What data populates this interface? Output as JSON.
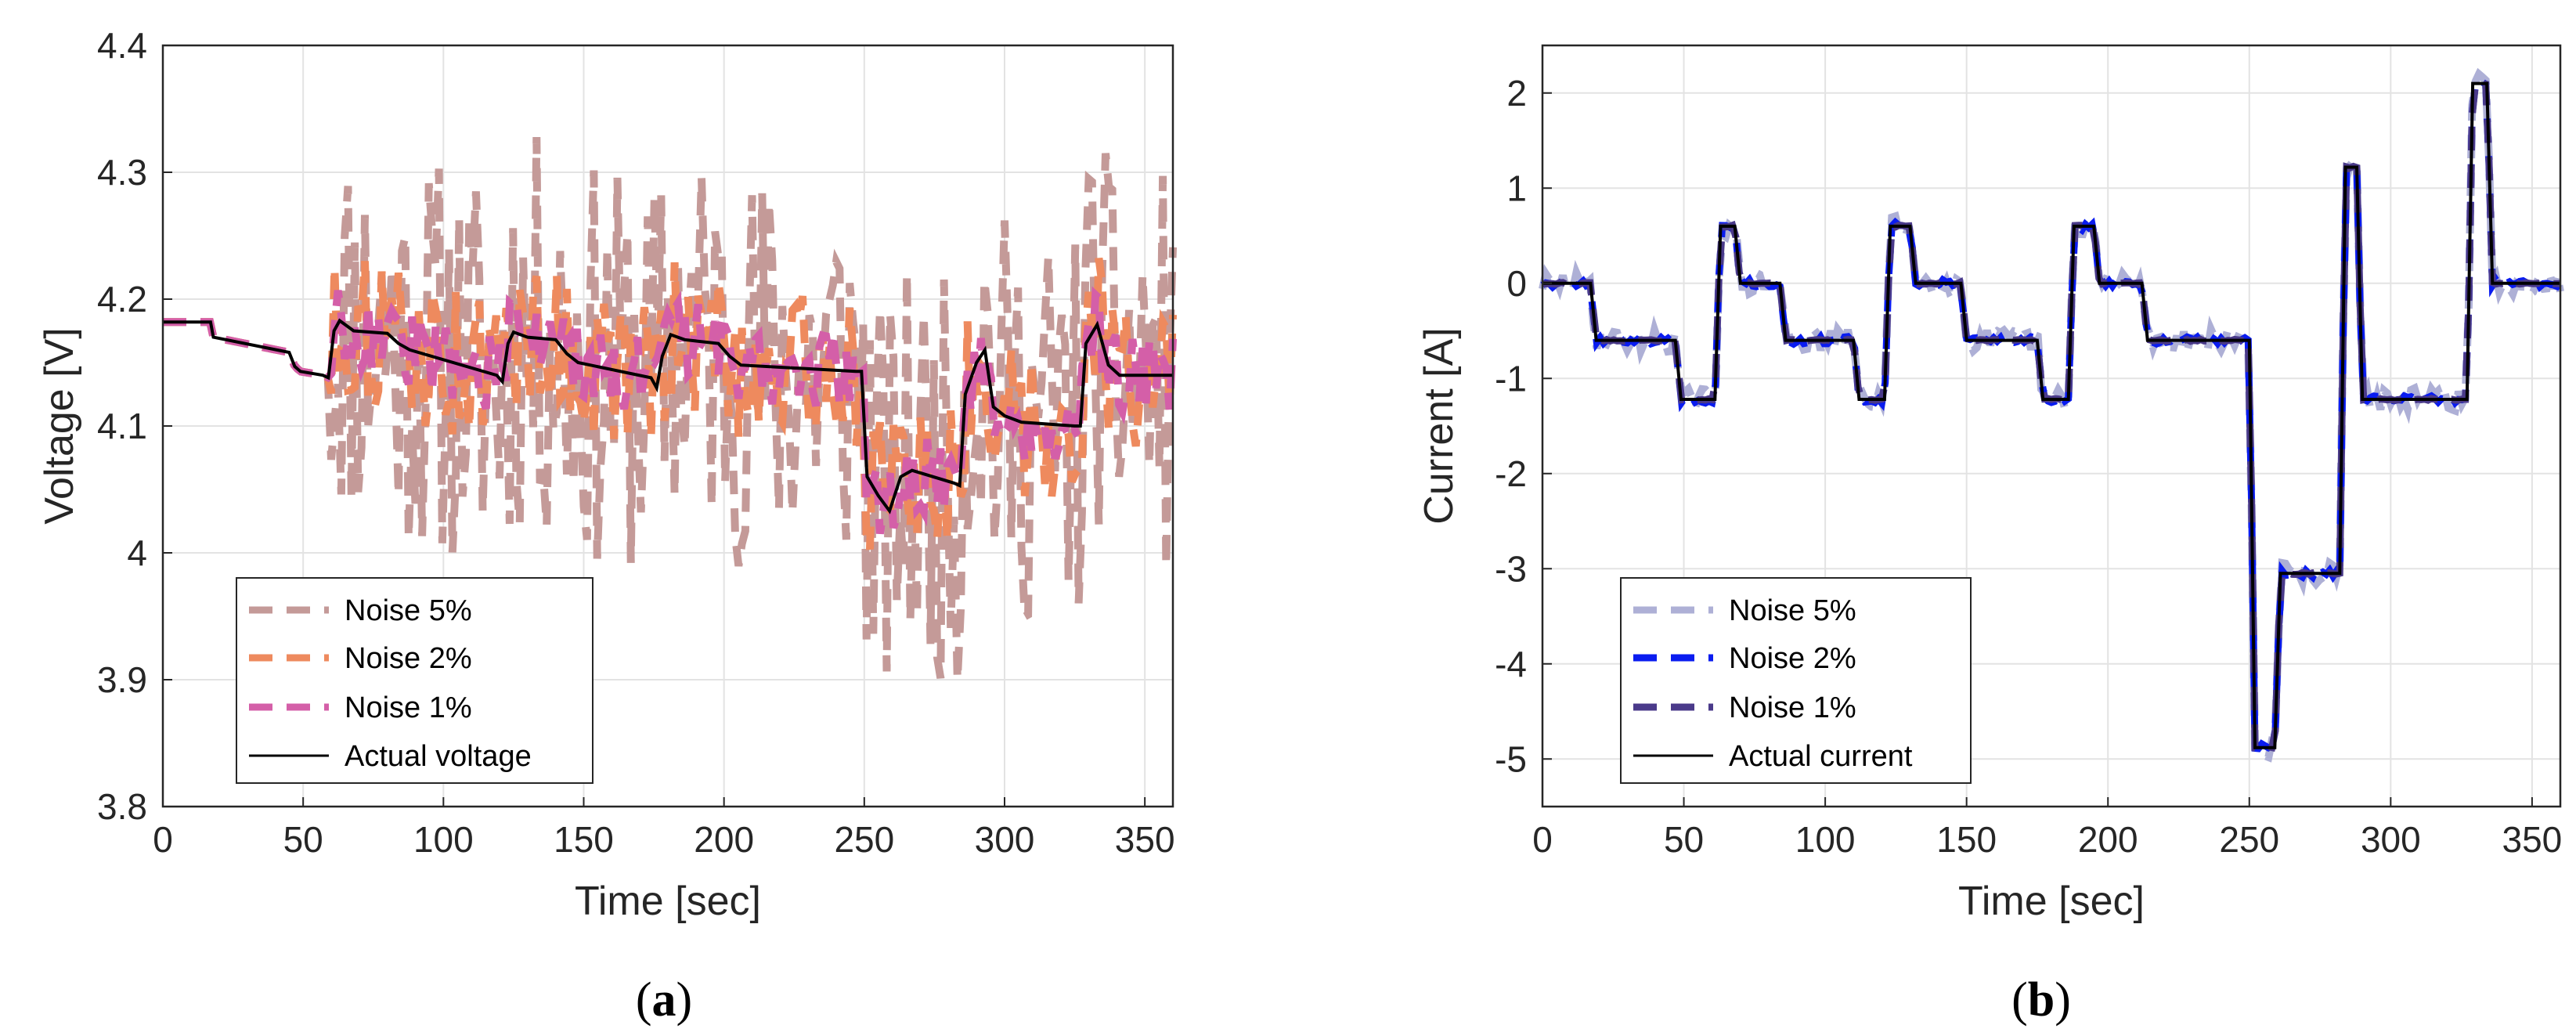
{
  "chart_data": [
    {
      "type": "line",
      "panel": "a",
      "caption_open": "(",
      "caption_letter": "a",
      "caption_close": ")",
      "xlabel": "Time [sec]",
      "ylabel": "Voltage [V]",
      "xlim": [
        0,
        360
      ],
      "ylim": [
        3.8,
        4.4
      ],
      "xticks": [
        0,
        50,
        100,
        150,
        200,
        250,
        300,
        350
      ],
      "yticks": [
        3.8,
        3.9,
        4.0,
        4.1,
        4.2,
        4.3,
        4.4
      ],
      "ytick_labels": [
        "3.8",
        "3.9",
        "4",
        "4.1",
        "4.2",
        "4.3",
        "4.4"
      ],
      "grid": true,
      "legend_position": "bottom-left",
      "series": [
        {
          "name": "Noise 5%",
          "color": "#c49a98",
          "style": "dashed",
          "noise_amplitude_V": 0.16
        },
        {
          "name": "Noise 2%",
          "color": "#ee8a5e",
          "style": "dashed",
          "noise_amplitude_V": 0.06
        },
        {
          "name": "Noise 1%",
          "color": "#d45fa8",
          "style": "dashed",
          "noise_amplitude_V": 0.03
        },
        {
          "name": "Actual voltage",
          "color": "#000000",
          "style": "solid",
          "x": [
            0,
            17,
            18,
            45,
            47,
            49,
            57,
            59,
            61,
            63,
            68,
            80,
            84,
            88,
            119,
            121,
            123,
            125,
            130,
            140,
            144,
            148,
            174,
            176,
            178,
            181,
            186,
            198,
            202,
            206,
            247,
            249,
            251,
            255,
            259,
            263,
            267,
            282,
            284,
            286,
            290,
            293,
            296,
            300,
            306,
            325,
            327,
            329,
            333,
            337,
            341,
            360
          ],
          "y": [
            4.182,
            4.182,
            4.17,
            4.158,
            4.147,
            4.143,
            4.14,
            4.138,
            4.175,
            4.183,
            4.175,
            4.173,
            4.165,
            4.16,
            4.14,
            4.135,
            4.165,
            4.174,
            4.17,
            4.168,
            4.157,
            4.15,
            4.138,
            4.13,
            4.155,
            4.172,
            4.168,
            4.165,
            4.155,
            4.148,
            4.143,
            4.143,
            4.06,
            4.045,
            4.033,
            4.06,
            4.065,
            4.055,
            4.053,
            4.125,
            4.15,
            4.16,
            4.115,
            4.108,
            4.103,
            4.1,
            4.1,
            4.165,
            4.18,
            4.148,
            4.14,
            4.14
          ]
        }
      ]
    },
    {
      "type": "line",
      "panel": "b",
      "caption_open": "(",
      "caption_letter": "b",
      "caption_close": ")",
      "xlabel": "Time [sec]",
      "ylabel": "Current [A]",
      "xlim": [
        0,
        360
      ],
      "ylim": [
        -5.5,
        2.5
      ],
      "xticks": [
        0,
        50,
        100,
        150,
        200,
        250,
        300,
        350
      ],
      "yticks": [
        -5,
        -4,
        -3,
        -2,
        -1,
        0,
        1,
        2
      ],
      "ytick_labels": [
        "-5",
        "-4",
        "-3",
        "-2",
        "-1",
        "0",
        "1",
        "2"
      ],
      "grid": true,
      "legend_position": "bottom-left",
      "series": [
        {
          "name": "Noise 5%",
          "color": "#aeb0d6",
          "style": "dashed",
          "noise_amplitude_A": 0.12
        },
        {
          "name": "Noise 2%",
          "color": "#0a1cf0",
          "style": "dashed",
          "noise_amplitude_A": 0.04
        },
        {
          "name": "Noise 1%",
          "color": "#4a3a8a",
          "style": "dashed",
          "noise_amplitude_A": 0.01
        },
        {
          "name": "Actual current",
          "color": "#000000",
          "style": "solid",
          "x": [
            0,
            17,
            19,
            47,
            49,
            61,
            63,
            68,
            70,
            84,
            86,
            110,
            112,
            121,
            123,
            130,
            132,
            148,
            150,
            175,
            177,
            186,
            188,
            195,
            197,
            212,
            214,
            250,
            252,
            259,
            261,
            282,
            284,
            288,
            290,
            327,
            329,
            334,
            336,
            360
          ],
          "y": [
            0,
            0,
            -0.6,
            -0.6,
            -1.22,
            -1.22,
            0.6,
            0.6,
            0,
            0,
            -0.6,
            -0.6,
            -1.22,
            -1.22,
            0.6,
            0.6,
            0,
            0,
            -0.6,
            -0.6,
            -1.22,
            -1.22,
            0.6,
            0.6,
            0,
            0,
            -0.6,
            -0.6,
            -4.88,
            -4.88,
            -3.05,
            -3.05,
            1.22,
            1.22,
            -1.22,
            -1.22,
            2.1,
            2.1,
            0,
            0
          ]
        }
      ]
    }
  ]
}
